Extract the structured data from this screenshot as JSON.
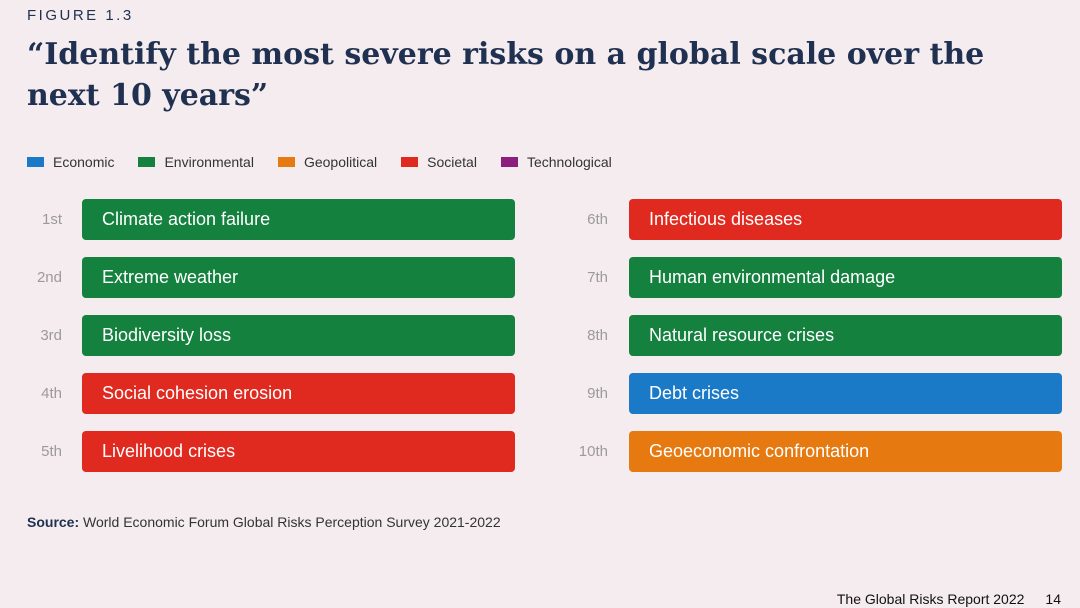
{
  "figure_label": "FIGURE 1.3",
  "title": "“Identify the most severe risks on a global scale over the next 10 years”",
  "legend": [
    {
      "label": "Economic",
      "color": "#1a7ac7"
    },
    {
      "label": "Environmental",
      "color": "#14813f"
    },
    {
      "label": "Geopolitical",
      "color": "#e67a10"
    },
    {
      "label": "Societal",
      "color": "#e0291f"
    },
    {
      "label": "Technological",
      "color": "#8c1f7e"
    }
  ],
  "risks": [
    {
      "rank": "1st",
      "label": "Climate action failure",
      "category": "Environmental"
    },
    {
      "rank": "2nd",
      "label": "Extreme weather",
      "category": "Environmental"
    },
    {
      "rank": "3rd",
      "label": "Biodiversity loss",
      "category": "Environmental"
    },
    {
      "rank": "4th",
      "label": "Social cohesion erosion",
      "category": "Societal"
    },
    {
      "rank": "5th",
      "label": "Livelihood crises",
      "category": "Societal"
    },
    {
      "rank": "6th",
      "label": "Infectious diseases",
      "category": "Societal"
    },
    {
      "rank": "7th",
      "label": "Human environmental damage",
      "category": "Environmental"
    },
    {
      "rank": "8th",
      "label": "Natural resource crises",
      "category": "Environmental"
    },
    {
      "rank": "9th",
      "label": "Debt crises",
      "category": "Economic"
    },
    {
      "rank": "10th",
      "label": "Geoeconomic confrontation",
      "category": "Geopolitical"
    }
  ],
  "source": {
    "label": "Source:",
    "text": "World Economic Forum Global Risks Perception Survey 2021-2022"
  },
  "footer": {
    "report": "The Global Risks Report 2022",
    "page": "14"
  }
}
